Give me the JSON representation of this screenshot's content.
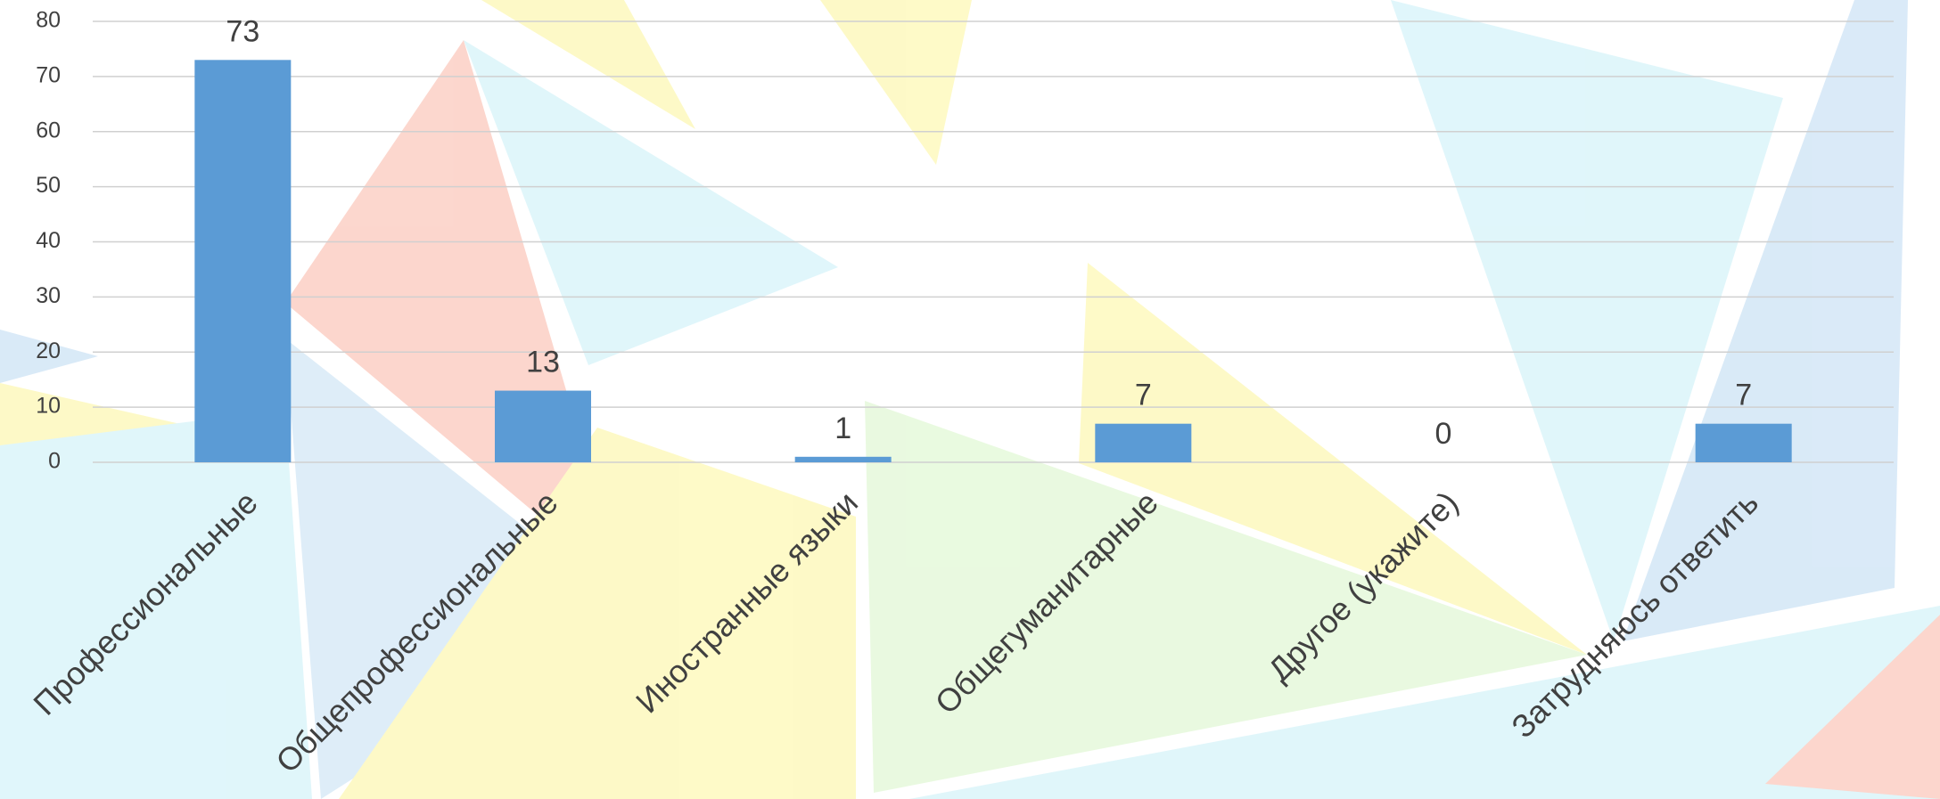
{
  "chart_data": {
    "type": "bar",
    "categories": [
      "Профессиональные",
      "Общепрофессиональные",
      "Иностранные языки",
      "Общегуманитарные",
      "Другое (укажите)",
      "Затрудняюсь ответить"
    ],
    "values": [
      73,
      13,
      1,
      7,
      0,
      7
    ],
    "color": "#5b9bd5",
    "ylim": [
      0,
      80
    ],
    "yticks": [
      0,
      10,
      20,
      30,
      40,
      50,
      60,
      70,
      80
    ],
    "grid": true
  }
}
